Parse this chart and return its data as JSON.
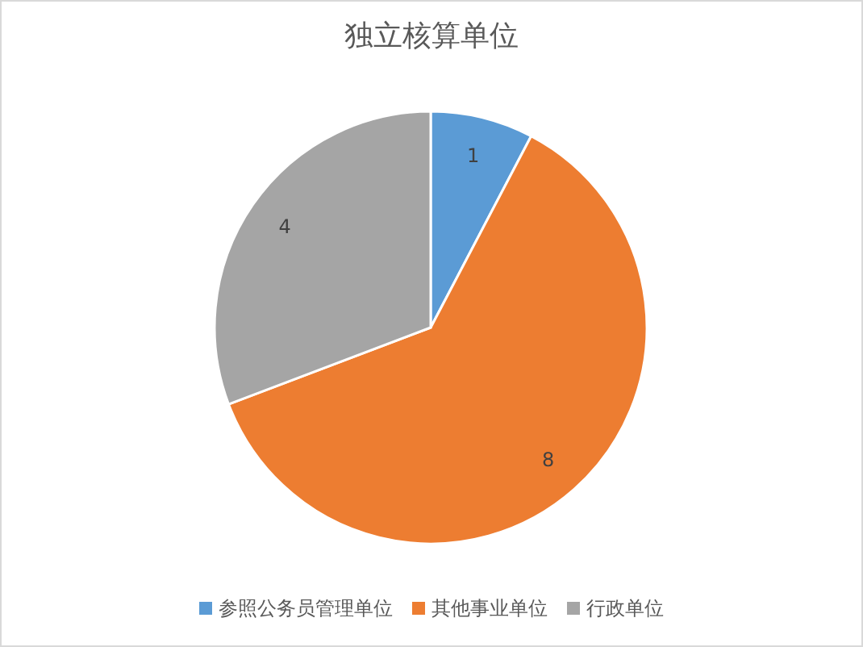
{
  "chart_data": {
    "type": "pie",
    "title": "独立核算单位",
    "categories": [
      "参照公务员管理单位",
      "其他事业单位",
      "行政单位"
    ],
    "values": [
      1,
      8,
      4
    ],
    "colors": [
      "#5b9bd5",
      "#ed7d31",
      "#a5a5a5"
    ],
    "data_labels": true,
    "legend": "bottom"
  }
}
